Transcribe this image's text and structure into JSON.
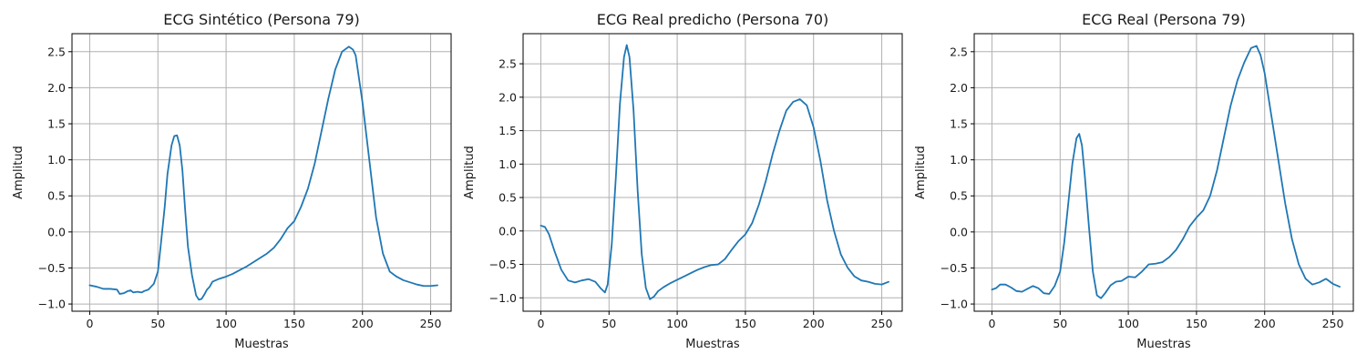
{
  "figure": {
    "line_color": "#1f77b4",
    "grid_color": "#b0b0b0"
  },
  "chart_data": [
    {
      "type": "line",
      "title": "ECG Sintético (Persona 79)",
      "xlabel": "Muestras",
      "ylabel": "Amplitud",
      "xlim": [
        -13,
        265
      ],
      "ylim": [
        -1.1,
        2.75
      ],
      "xticks": [
        0,
        50,
        100,
        150,
        200,
        250
      ],
      "yticks": [
        -1.0,
        -0.5,
        0.0,
        0.5,
        1.0,
        1.5,
        2.0,
        2.5
      ],
      "grid": true,
      "series": [
        {
          "x": [
            0,
            5,
            10,
            15,
            20,
            22,
            25,
            28,
            30,
            32,
            35,
            38,
            40,
            43,
            45,
            47,
            50,
            52,
            55,
            57,
            60,
            62,
            64,
            66,
            68,
            70,
            72,
            75,
            78,
            80,
            82,
            84,
            86,
            88,
            90,
            95,
            100,
            105,
            110,
            115,
            120,
            125,
            130,
            135,
            140,
            145,
            150,
            155,
            160,
            165,
            170,
            175,
            180,
            185,
            190,
            193,
            195,
            200,
            205,
            210,
            215,
            220,
            225,
            230,
            235,
            240,
            245,
            250,
            255
          ],
          "y": [
            -0.74,
            -0.76,
            -0.79,
            -0.79,
            -0.8,
            -0.86,
            -0.85,
            -0.82,
            -0.81,
            -0.84,
            -0.83,
            -0.84,
            -0.82,
            -0.8,
            -0.76,
            -0.72,
            -0.55,
            -0.2,
            0.35,
            0.8,
            1.2,
            1.33,
            1.34,
            1.2,
            0.85,
            0.3,
            -0.2,
            -0.6,
            -0.88,
            -0.94,
            -0.93,
            -0.87,
            -0.8,
            -0.76,
            -0.69,
            -0.65,
            -0.62,
            -0.58,
            -0.53,
            -0.48,
            -0.42,
            -0.36,
            -0.3,
            -0.22,
            -0.1,
            0.05,
            0.15,
            0.35,
            0.6,
            0.95,
            1.4,
            1.85,
            2.25,
            2.5,
            2.57,
            2.53,
            2.45,
            1.8,
            1.0,
            0.2,
            -0.3,
            -0.55,
            -0.62,
            -0.67,
            -0.7,
            -0.73,
            -0.75,
            -0.75,
            -0.74
          ]
        }
      ]
    },
    {
      "type": "line",
      "title": "ECG Real predicho (Persona 70)",
      "xlabel": "Muestras",
      "ylabel": "Amplitud",
      "xlim": [
        -13,
        265
      ],
      "ylim": [
        -1.2,
        2.95
      ],
      "xticks": [
        0,
        50,
        100,
        150,
        200,
        250
      ],
      "yticks": [
        -1.0,
        -0.5,
        0.0,
        0.5,
        1.0,
        1.5,
        2.0,
        2.5
      ],
      "grid": true,
      "series": [
        {
          "x": [
            0,
            3,
            6,
            10,
            15,
            20,
            25,
            30,
            35,
            40,
            44,
            47,
            49,
            52,
            55,
            58,
            61,
            63,
            65,
            68,
            71,
            74,
            77,
            80,
            83,
            86,
            90,
            95,
            100,
            105,
            110,
            115,
            120,
            125,
            130,
            135,
            140,
            145,
            150,
            155,
            160,
            165,
            170,
            175,
            180,
            185,
            190,
            195,
            200,
            205,
            210,
            215,
            220,
            225,
            230,
            235,
            240,
            245,
            250,
            255
          ],
          "y": [
            0.08,
            0.06,
            -0.05,
            -0.3,
            -0.58,
            -0.74,
            -0.77,
            -0.74,
            -0.72,
            -0.76,
            -0.86,
            -0.92,
            -0.8,
            -0.2,
            0.8,
            1.9,
            2.6,
            2.78,
            2.6,
            1.8,
            0.6,
            -0.35,
            -0.85,
            -1.02,
            -0.98,
            -0.9,
            -0.84,
            -0.78,
            -0.73,
            -0.68,
            -0.63,
            -0.58,
            -0.54,
            -0.51,
            -0.5,
            -0.42,
            -0.28,
            -0.15,
            -0.05,
            0.12,
            0.4,
            0.75,
            1.15,
            1.5,
            1.8,
            1.93,
            1.97,
            1.88,
            1.55,
            1.05,
            0.45,
            0.0,
            -0.35,
            -0.55,
            -0.68,
            -0.74,
            -0.76,
            -0.79,
            -0.8,
            -0.76
          ]
        }
      ]
    },
    {
      "type": "line",
      "title": "ECG Real (Persona 79)",
      "xlabel": "Muestras",
      "ylabel": "Amplitud",
      "xlim": [
        -13,
        265
      ],
      "ylim": [
        -1.1,
        2.75
      ],
      "xticks": [
        0,
        50,
        100,
        150,
        200,
        250
      ],
      "yticks": [
        -1.0,
        -0.5,
        0.0,
        0.5,
        1.0,
        1.5,
        2.0,
        2.5
      ],
      "grid": true,
      "series": [
        {
          "x": [
            0,
            3,
            6,
            10,
            14,
            18,
            22,
            26,
            30,
            34,
            38,
            42,
            46,
            50,
            53,
            56,
            59,
            62,
            64,
            66,
            68,
            71,
            74,
            77,
            80,
            83,
            87,
            91,
            95,
            100,
            105,
            110,
            115,
            120,
            125,
            130,
            135,
            140,
            145,
            150,
            155,
            160,
            165,
            170,
            175,
            180,
            185,
            190,
            194,
            197,
            200,
            205,
            210,
            215,
            220,
            225,
            230,
            235,
            240,
            245,
            250,
            255
          ],
          "y": [
            -0.8,
            -0.78,
            -0.73,
            -0.73,
            -0.77,
            -0.82,
            -0.83,
            -0.79,
            -0.75,
            -0.78,
            -0.85,
            -0.86,
            -0.75,
            -0.55,
            -0.15,
            0.4,
            0.95,
            1.3,
            1.36,
            1.2,
            0.8,
            0.1,
            -0.55,
            -0.88,
            -0.92,
            -0.85,
            -0.74,
            -0.69,
            -0.68,
            -0.62,
            -0.63,
            -0.55,
            -0.45,
            -0.44,
            -0.42,
            -0.35,
            -0.25,
            -0.1,
            0.08,
            0.2,
            0.3,
            0.5,
            0.85,
            1.3,
            1.75,
            2.1,
            2.35,
            2.55,
            2.58,
            2.45,
            2.2,
            1.6,
            1.0,
            0.4,
            -0.1,
            -0.45,
            -0.65,
            -0.73,
            -0.7,
            -0.65,
            -0.72,
            -0.76
          ]
        }
      ]
    }
  ]
}
